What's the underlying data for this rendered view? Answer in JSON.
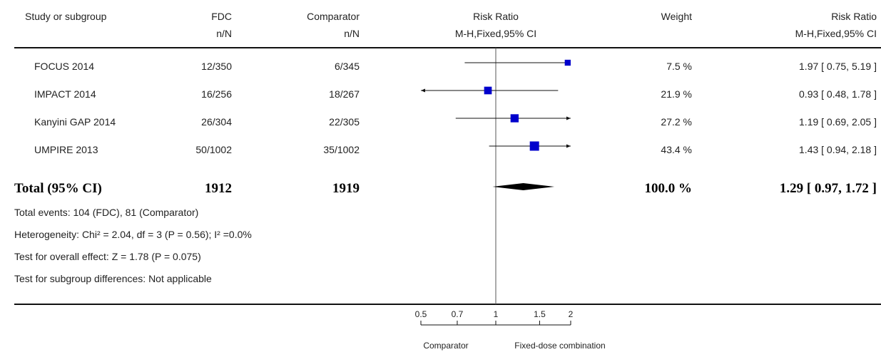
{
  "header": {
    "study": "Study or subgroup",
    "group1": "FDC",
    "group1_sub": "n/N",
    "group2": "Comparator",
    "group2_sub": "n/N",
    "plot": "Risk Ratio",
    "plot_sub": "M-H,Fixed,95% CI",
    "weight": "Weight",
    "effect": "Risk Ratio",
    "effect_sub": "M-H,Fixed,95% CI"
  },
  "studies": [
    {
      "name": "FOCUS 2014",
      "g1": "12/350",
      "g2": "6/345",
      "weight": "7.5 %",
      "ci_text": "1.97 [ 0.75, 5.19 ]"
    },
    {
      "name": "IMPACT 2014",
      "g1": "16/256",
      "g2": "18/267",
      "weight": "21.9 %",
      "ci_text": "0.93 [ 0.48, 1.78 ]"
    },
    {
      "name": "Kanyini GAP 2014",
      "g1": "26/304",
      "g2": "22/305",
      "weight": "27.2 %",
      "ci_text": "1.19 [ 0.69, 2.05 ]"
    },
    {
      "name": "UMPIRE 2013",
      "g1": "50/1002",
      "g2": "35/1002",
      "weight": "43.4 %",
      "ci_text": "1.43 [ 0.94, 2.18 ]"
    }
  ],
  "total": {
    "label": "Total (95% CI)",
    "g1": "1912",
    "g2": "1919",
    "weight": "100.0 %",
    "ci_text": "1.29 [ 0.97, 1.72 ]"
  },
  "footer": {
    "events": "Total events: 104 (FDC), 81 (Comparator)",
    "heterogeneity": "Heterogeneity: Chi² = 2.04, df = 3 (P = 0.56); I² =0.0%",
    "overall": "Test for overall effect: Z = 1.78 (P = 0.075)",
    "subgroup": "Test for subgroup differences: Not applicable"
  },
  "axis": {
    "left_label": "Comparator",
    "right_label": "Fixed-dose combination"
  },
  "colors": {
    "marker": "#0000cc",
    "diamond": "#000000",
    "line": "#111111"
  },
  "chart_data": {
    "type": "forest",
    "scale": "log",
    "xlim": [
      0.5,
      2
    ],
    "ticks": [
      0.5,
      0.7,
      1,
      1.5,
      2
    ],
    "tick_labels": [
      "0.5",
      "0.7",
      "1",
      "1.5",
      "2"
    ],
    "null_value": 1,
    "studies": [
      {
        "name": "FOCUS 2014",
        "rr": 1.97,
        "lo": 0.75,
        "hi": 5.19,
        "weight": 7.5
      },
      {
        "name": "IMPACT 2014",
        "rr": 0.93,
        "lo": 0.48,
        "hi": 1.78,
        "weight": 21.9
      },
      {
        "name": "Kanyini GAP 2014",
        "rr": 1.19,
        "lo": 0.69,
        "hi": 2.05,
        "weight": 27.2
      },
      {
        "name": "UMPIRE 2013",
        "rr": 1.43,
        "lo": 0.94,
        "hi": 2.18,
        "weight": 43.4
      }
    ],
    "pooled": {
      "rr": 1.29,
      "lo": 0.97,
      "hi": 1.72
    }
  }
}
